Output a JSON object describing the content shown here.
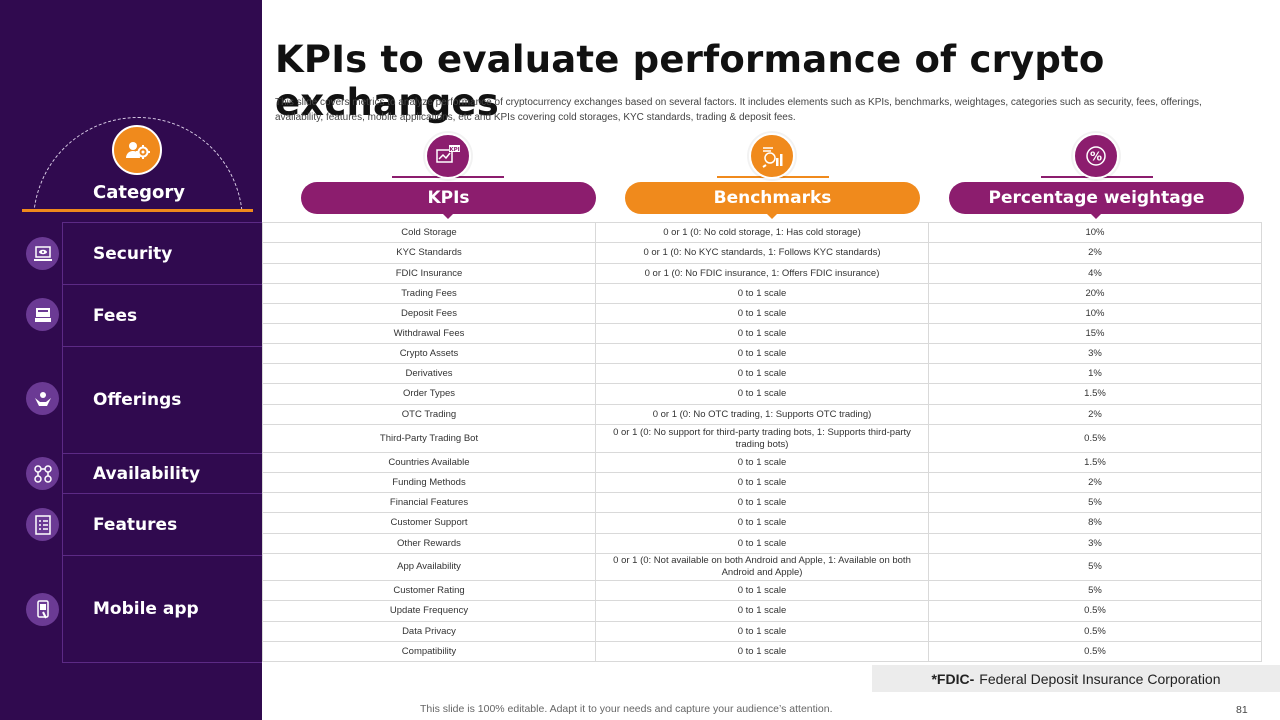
{
  "title": "KPIs to evaluate performance of crypto exchanges",
  "subtitle": "This slide covers metrics to analyze performance of cryptocurrency exchanges based on several factors. It includes elements such as KPIs, benchmarks, weightages, categories such as security, fees, offerings, availability, features, mobile applications, etc and KPIs covering cold storages, KYC standards, trading & deposit fees.",
  "sidebar": {
    "header": "Category",
    "categories": [
      {
        "label": "Security"
      },
      {
        "label": "Fees"
      },
      {
        "label": "Offerings"
      },
      {
        "label": "Availability"
      },
      {
        "label": "Features"
      },
      {
        "label": "Mobile app"
      }
    ]
  },
  "columns": {
    "kpis": {
      "label": "KPIs",
      "icon_text": "KPI",
      "color": "#8c1d6e"
    },
    "benchmarks": {
      "label": "Benchmarks",
      "color": "#f08a1c"
    },
    "weightage": {
      "label": "Percentage weightage",
      "icon_text": "%",
      "color": "#8c1d6e"
    }
  },
  "rows": [
    {
      "kpi": "Cold Storage",
      "benchmark": "0 or 1 (0: No cold storage, 1: Has cold storage)",
      "weight": "10%"
    },
    {
      "kpi": "KYC Standards",
      "benchmark": "0 or 1 (0: No KYC standards, 1: Follows KYC standards)",
      "weight": "2%"
    },
    {
      "kpi": "FDIC Insurance",
      "benchmark": "0 or 1 (0: No FDIC insurance, 1: Offers FDIC insurance)",
      "weight": "4%"
    },
    {
      "kpi": "Trading Fees",
      "benchmark": "0 to 1 scale",
      "weight": "20%"
    },
    {
      "kpi": "Deposit Fees",
      "benchmark": "0 to 1 scale",
      "weight": "10%"
    },
    {
      "kpi": "Withdrawal Fees",
      "benchmark": "0 to 1 scale",
      "weight": "15%"
    },
    {
      "kpi": "Crypto Assets",
      "benchmark": "0 to 1 scale",
      "weight": "3%"
    },
    {
      "kpi": "Derivatives",
      "benchmark": "0 to 1 scale",
      "weight": "1%"
    },
    {
      "kpi": "Order Types",
      "benchmark": "0 to 1 scale",
      "weight": "1.5%"
    },
    {
      "kpi": "OTC Trading",
      "benchmark": "0 or 1 (0: No OTC trading, 1: Supports OTC trading)",
      "weight": "2%"
    },
    {
      "kpi": "Third-Party Trading Bot",
      "benchmark": "0 or 1 (0: No support for third-party trading bots, 1: Supports third-party trading bots)",
      "weight": "0.5%"
    },
    {
      "kpi": "Countries Available",
      "benchmark": "0 to 1 scale",
      "weight": "1.5%"
    },
    {
      "kpi": "Funding Methods",
      "benchmark": "0 to 1 scale",
      "weight": "2%"
    },
    {
      "kpi": "Financial Features",
      "benchmark": "0 to 1 scale",
      "weight": "5%"
    },
    {
      "kpi": "Customer Support",
      "benchmark": "0 to 1 scale",
      "weight": "8%"
    },
    {
      "kpi": "Other Rewards",
      "benchmark": "0 to 1 scale",
      "weight": "3%"
    },
    {
      "kpi": "App Availability",
      "benchmark": "0 or 1 (0: Not available on both Android and Apple, 1: Available on both Android and Apple)",
      "weight": "5%"
    },
    {
      "kpi": "Customer Rating",
      "benchmark": "0 to 1 scale",
      "weight": "5%"
    },
    {
      "kpi": "Update Frequency",
      "benchmark": "0 to 1 scale",
      "weight": "0.5%"
    },
    {
      "kpi": "Data Privacy",
      "benchmark": "0 to 1 scale",
      "weight": "0.5%"
    },
    {
      "kpi": "Compatibility",
      "benchmark": "0 to 1 scale",
      "weight": "0.5%"
    }
  ],
  "footnote": {
    "term": "*FDIC-",
    "definition": "Federal Deposit Insurance Corporation"
  },
  "editable_note": "This slide is 100% editable. Adapt it to your needs and capture your audience’s attention.",
  "page_number": "81"
}
